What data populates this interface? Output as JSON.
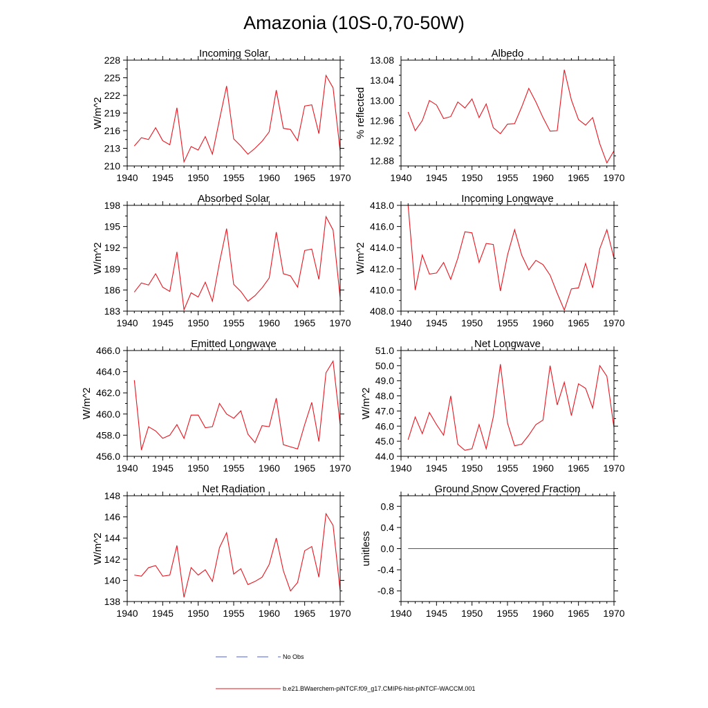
{
  "title": "Amazonia (10S-0,70-50W)",
  "colors": {
    "series": "#e8141e",
    "noobs": "#4a5fd8",
    "axis": "#000000"
  },
  "legend": [
    {
      "label": "No Obs",
      "style": "dashed",
      "color": "#4a5fd8"
    },
    {
      "label": "b.e21.BWaerchem-piNTCF.f09_g17.CMIP6-hist-piNTCF-WACCM.001",
      "style": "solid",
      "color": "#e8141e"
    }
  ],
  "chart_data": [
    {
      "type": "line",
      "title": "Incoming Solar",
      "ylabel": "W/m^2",
      "xlim": [
        1940,
        1970
      ],
      "ylim": [
        210,
        228
      ],
      "xticks": [
        1940,
        1945,
        1950,
        1955,
        1960,
        1965,
        1970
      ],
      "xtick_labels": [
        "1940",
        "1945",
        "1950",
        "1955",
        "1960",
        "1965",
        "1970"
      ],
      "yticks": [
        210,
        213,
        216,
        219,
        222,
        225,
        228
      ],
      "ytick_labels": [
        "210",
        "213",
        "216",
        "219",
        "222",
        "225",
        "228"
      ],
      "x": [
        1941,
        1942,
        1943,
        1944,
        1945,
        1946,
        1947,
        1948,
        1949,
        1950,
        1951,
        1952,
        1953,
        1954,
        1955,
        1956,
        1957,
        1958,
        1959,
        1960,
        1961,
        1962,
        1963,
        1964,
        1965,
        1966,
        1967,
        1968,
        1969,
        1970
      ],
      "y": [
        213.4,
        214.8,
        214.5,
        216.5,
        214.3,
        213.6,
        219.9,
        210.7,
        213.3,
        212.7,
        215.0,
        212.0,
        217.9,
        223.6,
        214.6,
        213.4,
        212.0,
        213.0,
        214.2,
        215.8,
        222.9,
        216.4,
        216.2,
        214.3,
        220.2,
        220.4,
        215.5,
        225.4,
        223.3,
        212.5
      ]
    },
    {
      "type": "line",
      "title": "Albedo",
      "ylabel": "% reflected",
      "xlim": [
        1940,
        1970
      ],
      "ylim": [
        12.87,
        13.08
      ],
      "xticks": [
        1940,
        1945,
        1950,
        1955,
        1960,
        1965,
        1970
      ],
      "xtick_labels": [
        "1940",
        "1945",
        "1950",
        "1955",
        "1960",
        "1965",
        "1970"
      ],
      "yticks": [
        12.88,
        12.92,
        12.96,
        13.0,
        13.04,
        13.08
      ],
      "ytick_labels": [
        "12.88",
        "12.92",
        "12.96",
        "13.00",
        "13.04",
        "13.08"
      ],
      "x": [
        1941,
        1942,
        1943,
        1944,
        1945,
        1946,
        1947,
        1948,
        1949,
        1950,
        1951,
        1952,
        1953,
        1954,
        1955,
        1956,
        1957,
        1958,
        1959,
        1960,
        1961,
        1962,
        1963,
        1964,
        1965,
        1966,
        1967,
        1968,
        1969,
        1970
      ],
      "y": [
        12.977,
        12.94,
        12.96,
        13.0,
        12.991,
        12.964,
        12.968,
        12.997,
        12.985,
        13.003,
        12.966,
        12.993,
        12.946,
        12.934,
        12.953,
        12.954,
        12.987,
        13.024,
        12.997,
        12.966,
        12.939,
        12.94,
        13.061,
        13.001,
        12.962,
        12.951,
        12.966,
        12.914,
        12.876,
        12.9
      ]
    },
    {
      "type": "line",
      "title": "Absorbed Solar",
      "ylabel": "W/m^2",
      "xlim": [
        1940,
        1970
      ],
      "ylim": [
        183,
        198
      ],
      "xticks": [
        1940,
        1945,
        1950,
        1955,
        1960,
        1965,
        1970
      ],
      "xtick_labels": [
        "1940",
        "1945",
        "1950",
        "1955",
        "1960",
        "1965",
        "1970"
      ],
      "yticks": [
        183,
        186,
        189,
        192,
        195,
        198
      ],
      "ytick_labels": [
        "183",
        "186",
        "189",
        "192",
        "195",
        "198"
      ],
      "x": [
        1941,
        1942,
        1943,
        1944,
        1945,
        1946,
        1947,
        1948,
        1949,
        1950,
        1951,
        1952,
        1953,
        1954,
        1955,
        1956,
        1957,
        1958,
        1959,
        1960,
        1961,
        1962,
        1963,
        1964,
        1965,
        1966,
        1967,
        1968,
        1969,
        1970
      ],
      "y": [
        185.7,
        187.0,
        186.7,
        188.3,
        186.4,
        185.8,
        191.4,
        183.2,
        185.6,
        185.0,
        187.1,
        184.4,
        189.9,
        194.7,
        186.8,
        185.8,
        184.4,
        185.2,
        186.3,
        187.7,
        194.2,
        188.3,
        188.0,
        186.4,
        191.6,
        191.8,
        187.5,
        196.4,
        194.5,
        184.9
      ]
    },
    {
      "type": "line",
      "title": "Incoming Longwave",
      "ylabel": "W/m^2",
      "xlim": [
        1940,
        1970
      ],
      "ylim": [
        408,
        418
      ],
      "xticks": [
        1940,
        1945,
        1950,
        1955,
        1960,
        1965,
        1970
      ],
      "xtick_labels": [
        "1940",
        "1945",
        "1950",
        "1955",
        "1960",
        "1965",
        "1970"
      ],
      "yticks": [
        408,
        410,
        412,
        414,
        416,
        418
      ],
      "ytick_labels": [
        "408.0",
        "410.0",
        "412.0",
        "414.0",
        "416.0",
        "418.0"
      ],
      "x": [
        1941,
        1942,
        1943,
        1944,
        1945,
        1946,
        1947,
        1948,
        1949,
        1950,
        1951,
        1952,
        1953,
        1954,
        1955,
        1956,
        1957,
        1958,
        1959,
        1960,
        1961,
        1962,
        1963,
        1964,
        1965,
        1966,
        1967,
        1968,
        1969,
        1970
      ],
      "y": [
        418.0,
        410.0,
        413.3,
        411.5,
        411.6,
        412.6,
        411.0,
        413.0,
        415.5,
        415.4,
        412.6,
        414.4,
        414.3,
        409.9,
        413.3,
        415.7,
        413.3,
        411.9,
        412.8,
        412.4,
        411.4,
        409.7,
        408.1,
        410.1,
        410.2,
        412.5,
        410.2,
        413.9,
        415.7,
        413.0
      ]
    },
    {
      "type": "line",
      "title": "Emitted Longwave",
      "ylabel": "W/m^2",
      "xlim": [
        1940,
        1970
      ],
      "ylim": [
        456,
        466
      ],
      "xticks": [
        1940,
        1945,
        1950,
        1955,
        1960,
        1965,
        1970
      ],
      "xtick_labels": [
        "1940",
        "1945",
        "1950",
        "1955",
        "1960",
        "1965",
        "1970"
      ],
      "yticks": [
        456,
        458,
        460,
        462,
        464,
        466
      ],
      "ytick_labels": [
        "456.0",
        "458.0",
        "460.0",
        "462.0",
        "464.0",
        "466.0"
      ],
      "x": [
        1941,
        1942,
        1943,
        1944,
        1945,
        1946,
        1947,
        1948,
        1949,
        1950,
        1951,
        1952,
        1953,
        1954,
        1955,
        1956,
        1957,
        1958,
        1959,
        1960,
        1961,
        1962,
        1963,
        1964,
        1965,
        1966,
        1967,
        1968,
        1969,
        1970
      ],
      "y": [
        463.2,
        456.6,
        458.8,
        458.4,
        457.7,
        458.0,
        459.0,
        457.7,
        459.9,
        459.9,
        458.7,
        458.8,
        461.0,
        460.0,
        459.6,
        460.3,
        458.1,
        457.3,
        458.9,
        458.8,
        461.5,
        457.1,
        456.9,
        456.7,
        459.0,
        461.1,
        457.4,
        463.9,
        465.0,
        459.0
      ]
    },
    {
      "type": "line",
      "title": "Net Longwave",
      "ylabel": "W/m^2",
      "xlim": [
        1940,
        1970
      ],
      "ylim": [
        44,
        51
      ],
      "xticks": [
        1940,
        1945,
        1950,
        1955,
        1960,
        1965,
        1970
      ],
      "xtick_labels": [
        "1940",
        "1945",
        "1950",
        "1955",
        "1960",
        "1965",
        "1970"
      ],
      "yticks": [
        44,
        45,
        46,
        47,
        48,
        49,
        50,
        51
      ],
      "ytick_labels": [
        "44.0",
        "45.0",
        "46.0",
        "47.0",
        "48.0",
        "49.0",
        "50.0",
        "51.0"
      ],
      "x": [
        1941,
        1942,
        1943,
        1944,
        1945,
        1946,
        1947,
        1948,
        1949,
        1950,
        1951,
        1952,
        1953,
        1954,
        1955,
        1956,
        1957,
        1958,
        1959,
        1960,
        1961,
        1962,
        1963,
        1964,
        1965,
        1966,
        1967,
        1968,
        1969,
        1970
      ],
      "y": [
        45.1,
        46.6,
        45.5,
        46.9,
        46.1,
        45.4,
        48.0,
        44.8,
        44.4,
        44.5,
        46.1,
        44.5,
        46.6,
        50.1,
        46.2,
        44.7,
        44.8,
        45.4,
        46.1,
        46.4,
        50.0,
        47.4,
        48.9,
        46.7,
        48.8,
        48.5,
        47.2,
        50.0,
        49.3,
        45.9
      ]
    },
    {
      "type": "line",
      "title": "Net Radiation",
      "ylabel": "W/m^2",
      "xlim": [
        1940,
        1970
      ],
      "ylim": [
        138,
        148
      ],
      "xticks": [
        1940,
        1945,
        1950,
        1955,
        1960,
        1965,
        1970
      ],
      "xtick_labels": [
        "1940",
        "1945",
        "1950",
        "1955",
        "1960",
        "1965",
        "1970"
      ],
      "yticks": [
        138,
        140,
        142,
        144,
        146,
        148
      ],
      "ytick_labels": [
        "138",
        "140",
        "142",
        "144",
        "146",
        "148"
      ],
      "x": [
        1941,
        1942,
        1943,
        1944,
        1945,
        1946,
        1947,
        1948,
        1949,
        1950,
        1951,
        1952,
        1953,
        1954,
        1955,
        1956,
        1957,
        1958,
        1959,
        1960,
        1961,
        1962,
        1963,
        1964,
        1965,
        1966,
        1967,
        1968,
        1969,
        1970
      ],
      "y": [
        140.5,
        140.4,
        141.2,
        141.4,
        140.4,
        140.5,
        143.3,
        138.4,
        141.2,
        140.5,
        141.0,
        139.9,
        143.1,
        144.5,
        140.6,
        141.1,
        139.6,
        139.9,
        140.3,
        141.5,
        144.0,
        140.9,
        139.0,
        139.8,
        142.8,
        143.2,
        140.3,
        146.3,
        145.2,
        139.0
      ]
    },
    {
      "type": "line",
      "title": "Ground Snow Covered Fraction",
      "ylabel": "unitless",
      "xlim": [
        1940,
        1970
      ],
      "ylim": [
        -1,
        1
      ],
      "xticks": [
        1940,
        1945,
        1950,
        1955,
        1960,
        1965,
        1970
      ],
      "xtick_labels": [
        "1940",
        "1945",
        "1950",
        "1955",
        "1960",
        "1965",
        "1970"
      ],
      "yticks": [
        -0.8,
        -0.4,
        0.0,
        0.4,
        0.8
      ],
      "ytick_labels": [
        "-0.8",
        "-0.4",
        "0.0",
        "0.4",
        "0.8"
      ],
      "x": [
        1941,
        1942,
        1943,
        1944,
        1945,
        1946,
        1947,
        1948,
        1949,
        1950,
        1951,
        1952,
        1953,
        1954,
        1955,
        1956,
        1957,
        1958,
        1959,
        1960,
        1961,
        1962,
        1963,
        1964,
        1965,
        1966,
        1967,
        1968,
        1969,
        1970
      ],
      "y": [
        0,
        0,
        0,
        0,
        0,
        0,
        0,
        0,
        0,
        0,
        0,
        0,
        0,
        0,
        0,
        0,
        0,
        0,
        0,
        0,
        0,
        0,
        0,
        0,
        0,
        0,
        0,
        0,
        0,
        0
      ]
    }
  ]
}
